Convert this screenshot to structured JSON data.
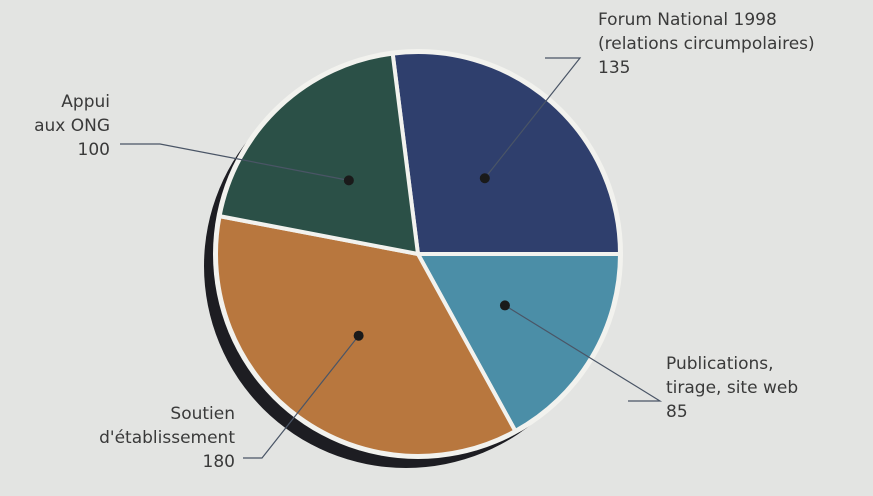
{
  "chart_data": {
    "type": "pie",
    "categories": [
      "Forum National 1998\n(relations circumpolaires)",
      "Publications,\ntirage, site web",
      "Soutien\nd'établissement",
      "Appui\naux ONG"
    ],
    "values": [
      135,
      85,
      180,
      100
    ],
    "colors": [
      "#2f3f6d",
      "#4b8ea7",
      "#b8773e",
      "#2b5047"
    ]
  }
}
